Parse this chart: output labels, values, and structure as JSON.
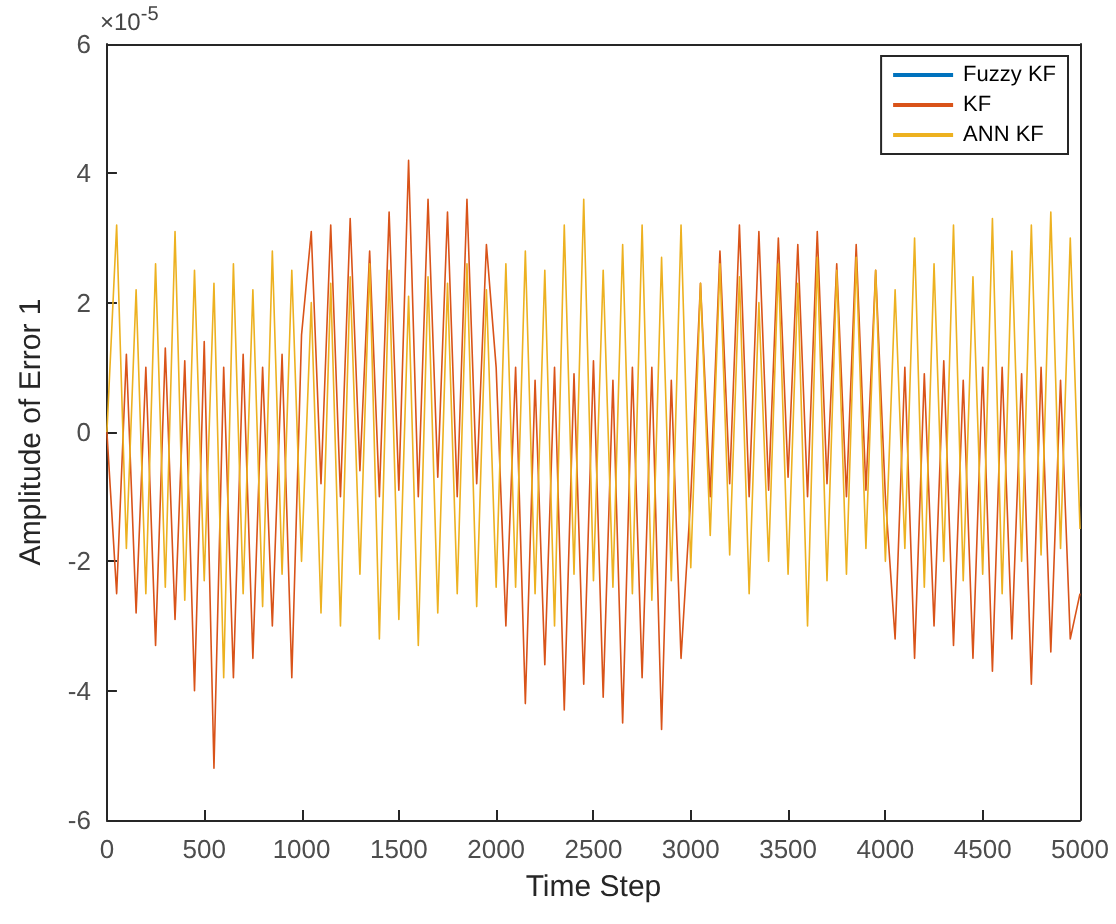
{
  "chart_data": {
    "type": "line",
    "xlabel": "Time Step",
    "ylabel": "Amplitude of Error 1",
    "annotations": [
      "×10$^{-5}$"
    ],
    "x": [
      0,
      50,
      100,
      150,
      200,
      250,
      300,
      350,
      400,
      450,
      500,
      550,
      600,
      650,
      700,
      750,
      800,
      850,
      900,
      950,
      1000,
      1050,
      1100,
      1150,
      1200,
      1250,
      1300,
      1350,
      1400,
      1450,
      1500,
      1550,
      1600,
      1650,
      1700,
      1750,
      1800,
      1850,
      1900,
      1950,
      2000,
      2050,
      2100,
      2150,
      2200,
      2250,
      2300,
      2350,
      2400,
      2450,
      2500,
      2550,
      2600,
      2650,
      2700,
      2750,
      2800,
      2850,
      2900,
      2950,
      3000,
      3050,
      3100,
      3150,
      3200,
      3250,
      3300,
      3350,
      3400,
      3450,
      3500,
      3550,
      3600,
      3650,
      3700,
      3750,
      3800,
      3850,
      3900,
      3950,
      4000,
      4050,
      4100,
      4150,
      4200,
      4250,
      4300,
      4350,
      4400,
      4450,
      4500,
      4550,
      4600,
      4650,
      4700,
      4750,
      4800,
      4850,
      4900,
      4950,
      5000
    ],
    "series": [
      {
        "name": "Fuzzy KF",
        "color": "#0072bd",
        "values": [
          null,
          null,
          null,
          null,
          null,
          null,
          null,
          null,
          null,
          null,
          null,
          null,
          null,
          null,
          null,
          null,
          null,
          null,
          null,
          null,
          null,
          null,
          null,
          null,
          null,
          null,
          null,
          null,
          null,
          null,
          null,
          null,
          null,
          null,
          null,
          null,
          null,
          null,
          null,
          null,
          null,
          null,
          null,
          null,
          null,
          null,
          null,
          null,
          null,
          null,
          null,
          null,
          null,
          null,
          null,
          null,
          null,
          null,
          null,
          null,
          null,
          null,
          null,
          null,
          null,
          null,
          null,
          null,
          null,
          null,
          null,
          null,
          null,
          null,
          null,
          null,
          null,
          null,
          null,
          null,
          null,
          null,
          null,
          null,
          null,
          null,
          null,
          null,
          null,
          null,
          null,
          null,
          null,
          null,
          null,
          null,
          null,
          null,
          null,
          null,
          null
        ]
      },
      {
        "name": "KF",
        "color": "#d95319",
        "values": [
          0,
          -2.5,
          1.2,
          -2.8,
          1,
          -3.3,
          1.3,
          -2.9,
          1.1,
          -4,
          1.4,
          -5.2,
          1,
          -3.8,
          1.2,
          -3.5,
          1,
          -3,
          1.2,
          -3.8,
          1.5,
          3.1,
          -0.8,
          3.2,
          -1,
          3.3,
          -0.6,
          2.8,
          -1,
          3.4,
          -0.9,
          4.2,
          -1,
          3.6,
          -0.7,
          3.4,
          -1,
          3.6,
          -0.8,
          2.9,
          1,
          -3,
          1,
          -4.2,
          0.8,
          -3.6,
          1,
          -4.3,
          0.9,
          -3.9,
          1.1,
          -4.1,
          0.8,
          -4.5,
          1,
          -3.8,
          1,
          -4.6,
          0.8,
          -3.5,
          -1,
          2.3,
          -1,
          2.8,
          -0.8,
          3.2,
          -1,
          3.1,
          -0.9,
          3,
          -0.7,
          2.9,
          -1,
          3.1,
          -0.8,
          2.6,
          -1,
          2.9,
          -0.9,
          2.5,
          -1,
          -3.2,
          1,
          -3.5,
          0.9,
          -3,
          1.1,
          -3.3,
          0.8,
          -3.5,
          1,
          -3.7,
          1,
          -3.2,
          0.9,
          -3.9,
          1,
          -3.4,
          0.8,
          -3.2,
          -2.5
        ]
      },
      {
        "name": "ANN KF",
        "color": "#edb120",
        "values": [
          0,
          3.2,
          -1.8,
          2.2,
          -2.5,
          2.6,
          -2.4,
          3.1,
          -2.6,
          2.5,
          -2.3,
          2.3,
          -3.8,
          2.6,
          -2.5,
          2.2,
          -2.7,
          2.8,
          -2.2,
          2.5,
          -2,
          2,
          -2.8,
          2.3,
          -3,
          2.4,
          -2.2,
          2.6,
          -3.2,
          2.5,
          -2.9,
          2.1,
          -3.3,
          2.4,
          -2.8,
          2.3,
          -2.5,
          2.6,
          -2.7,
          2.2,
          -2.4,
          2.6,
          -2.4,
          2.8,
          -2.5,
          2.5,
          -3,
          3.2,
          -2.2,
          3.6,
          -2.3,
          2.5,
          -2.4,
          2.9,
          -2.5,
          3.2,
          -2.6,
          2.7,
          -2.3,
          3.2,
          -2.1,
          2.3,
          -1.6,
          2.6,
          -1.9,
          2.4,
          -2.5,
          2,
          -2,
          2.6,
          -2.2,
          2.3,
          -3,
          2.7,
          -2.3,
          2.5,
          -2.2,
          2.7,
          -1.8,
          2.5,
          -2,
          2.2,
          -1.8,
          3,
          -2.4,
          2.6,
          -2,
          3.2,
          -2.3,
          2.4,
          -2.2,
          3.3,
          -2.5,
          2.8,
          -2,
          3.2,
          -1.9,
          3.4,
          -1.8,
          3,
          -1.5
        ]
      }
    ],
    "xlim": [
      0,
      5000
    ],
    "xticks": [
      0,
      500,
      1000,
      1500,
      2000,
      2500,
      3000,
      3500,
      4000,
      4500,
      5000
    ],
    "ylim": [
      -6,
      6
    ],
    "yticks": [
      -6,
      -4,
      -2,
      0,
      2,
      4,
      6
    ],
    "grid": false,
    "legend": "top right",
    "marker": "none",
    "line_style": "solid"
  }
}
